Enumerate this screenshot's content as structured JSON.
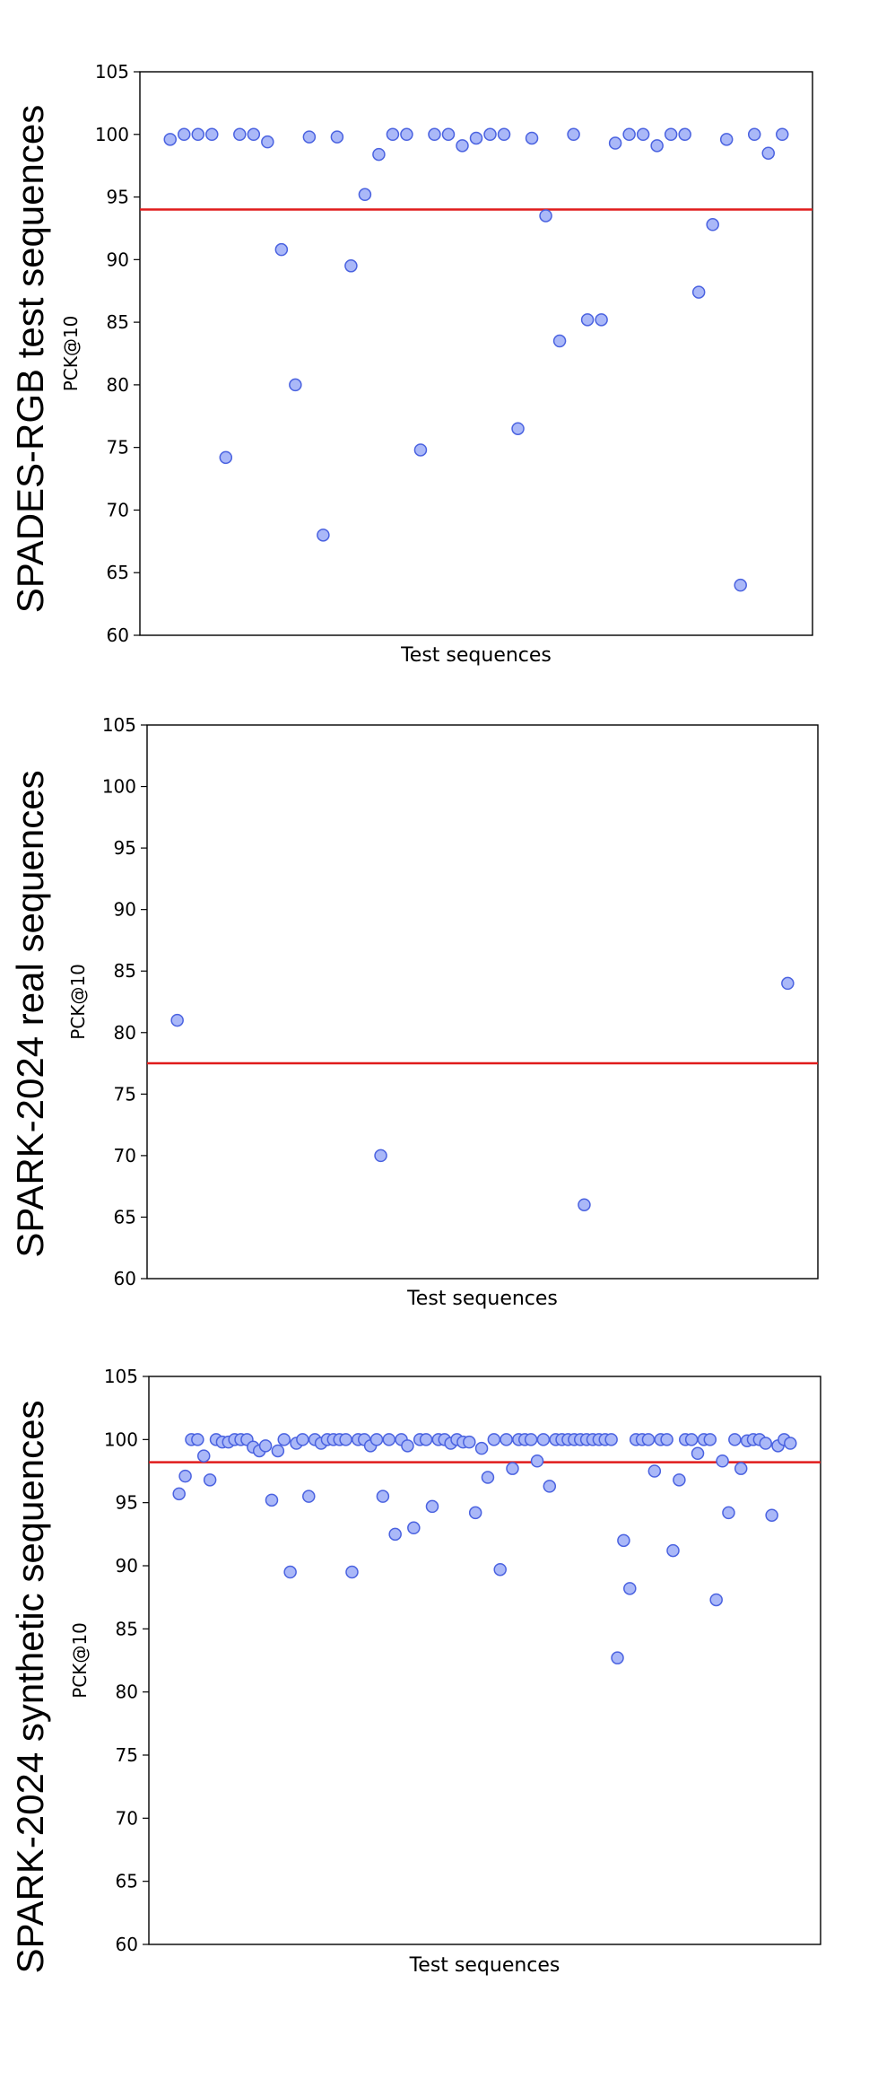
{
  "figure": {
    "row_labels": [
      "SPADES-RGB test sequences",
      "SPARK-2024 real sequences",
      "SPARK-2024 synthetic sequences"
    ],
    "colors": {
      "point_fill": "#aab8f8",
      "point_stroke": "#4a62e0",
      "threshold_line": "#e01b1b",
      "axes": "#000000"
    }
  },
  "chart_data": [
    {
      "type": "scatter",
      "row_label": "SPADES-RGB test sequences",
      "xlabel": "Test sequences",
      "ylabel": "PCK@10",
      "ylim": [
        60,
        105
      ],
      "yticks": [
        60,
        65,
        70,
        75,
        80,
        85,
        90,
        95,
        100,
        105
      ],
      "grid": false,
      "threshold": 94,
      "values": [
        99.6,
        100,
        100,
        100,
        74.2,
        100,
        100,
        99.4,
        90.8,
        80,
        99.8,
        68,
        99.8,
        89.5,
        95.2,
        98.4,
        100,
        100,
        74.8,
        100,
        100,
        99.1,
        99.7,
        100,
        100,
        76.5,
        99.7,
        93.5,
        83.5,
        100,
        85.2,
        85.2,
        99.3,
        100,
        100,
        99.1,
        100,
        100,
        87.4,
        92.8,
        99.6,
        64,
        100,
        98.5,
        100
      ]
    },
    {
      "type": "scatter",
      "row_label": "SPARK-2024 real sequences",
      "xlabel": "Test sequences",
      "ylabel": "PCK@10",
      "ylim": [
        60,
        105
      ],
      "yticks": [
        60,
        65,
        70,
        75,
        80,
        85,
        90,
        95,
        100,
        105
      ],
      "grid": false,
      "threshold": 77.5,
      "values": [
        81,
        70,
        66,
        84
      ]
    },
    {
      "type": "scatter",
      "row_label": "SPARK-2024 synthetic sequences",
      "xlabel": "Test sequences",
      "ylabel": "PCK@10",
      "ylim": [
        60,
        105
      ],
      "yticks": [
        60,
        65,
        70,
        75,
        80,
        85,
        90,
        95,
        100,
        105
      ],
      "grid": false,
      "threshold": 98.2,
      "values": [
        95.7,
        97.1,
        100,
        100,
        98.7,
        96.8,
        100,
        99.8,
        99.8,
        100,
        100,
        100,
        99.4,
        99.1,
        99.5,
        95.2,
        99.1,
        100,
        89.5,
        99.7,
        100,
        95.5,
        100,
        99.7,
        100,
        100,
        100,
        100,
        89.5,
        100,
        100,
        99.5,
        100,
        95.5,
        100,
        92.5,
        100,
        99.5,
        93,
        100,
        100,
        94.7,
        100,
        100,
        99.7,
        100,
        99.8,
        99.8,
        94.2,
        99.3,
        97,
        100,
        89.7,
        100,
        97.7,
        100,
        100,
        100,
        98.3,
        100,
        96.3,
        100,
        100,
        100,
        100,
        100,
        100,
        100,
        100,
        100,
        100,
        82.7,
        92,
        88.2,
        100,
        100,
        100,
        97.5,
        100,
        100,
        91.2,
        96.8,
        100,
        100,
        98.9,
        100,
        100,
        87.3,
        98.3,
        94.2,
        100,
        97.7,
        99.9,
        100,
        100,
        99.7,
        94,
        99.5,
        100,
        99.7
      ]
    }
  ]
}
